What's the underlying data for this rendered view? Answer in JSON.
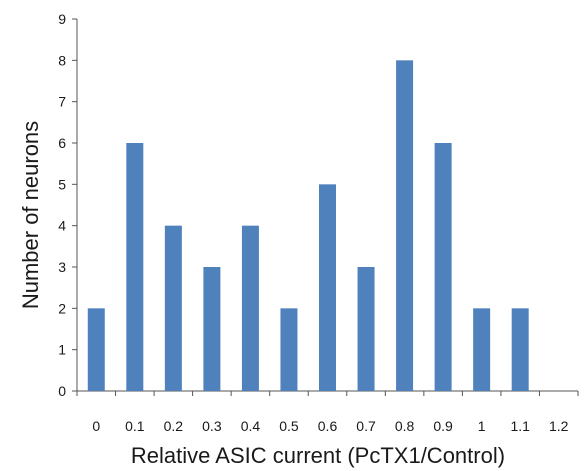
{
  "chart_data": {
    "type": "bar",
    "title": "",
    "xlabel": "Relative ASIC current (PcTX1/Control)",
    "ylabel": "Number of neurons",
    "categories": [
      "0",
      "0.1",
      "0.2",
      "0.3",
      "0.4",
      "0.5",
      "0.6",
      "0.7",
      "0.8",
      "0.9",
      "1",
      "1.1",
      "1.2"
    ],
    "values": [
      2,
      6,
      4,
      3,
      4,
      2,
      5,
      3,
      8,
      6,
      2,
      2,
      0
    ],
    "ylim": [
      0,
      9
    ],
    "yticks": [
      "0",
      "1",
      "2",
      "3",
      "4",
      "5",
      "6",
      "7",
      "8",
      "9"
    ],
    "bar_color": "#4f81bd",
    "grid": false,
    "legend": "none"
  }
}
